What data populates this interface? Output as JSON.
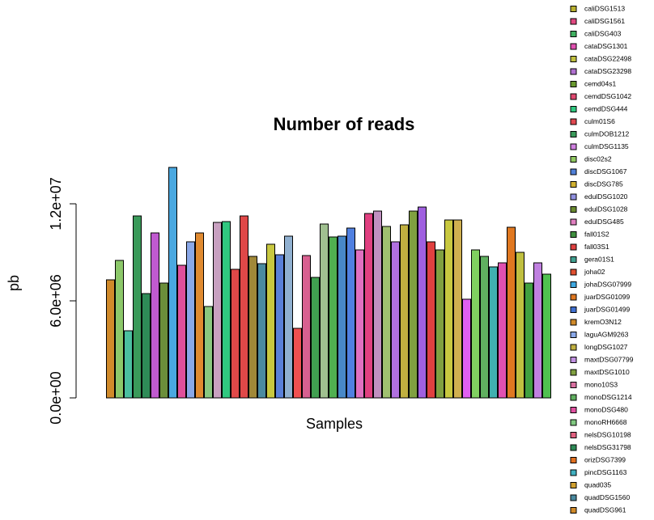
{
  "chart_data": {
    "type": "bar",
    "title": "Number of reads",
    "x_label": "Samples",
    "y_label": "pb",
    "values": [
      7300000,
      8500000,
      4150000,
      11250000,
      6450000,
      10200000,
      7100000,
      14250000,
      8200000,
      9650000,
      10200000,
      5650000,
      10850000,
      10900000,
      7950000,
      11250000,
      8750000,
      8300000,
      9500000,
      8850000,
      10000000,
      4300000,
      8800000,
      7450000,
      10750000,
      9950000,
      10000000,
      10500000,
      9150000,
      11400000,
      11550000,
      10600000,
      9650000,
      10700000,
      11550000,
      11800000,
      9650000,
      9150000,
      11000000,
      11000000,
      6100000,
      9150000,
      8750000,
      8100000,
      8350000,
      10550000,
      9000000,
      7100000,
      8350000,
      7650000
    ],
    "colors": [
      "#d08a2a",
      "#8cc86a",
      "#4bbfa0",
      "#3a9a5a",
      "#2e8b57",
      "#c05ad0",
      "#6b8e3a",
      "#4aa8e0",
      "#e0509a",
      "#8aa8e8",
      "#e08a30",
      "#8ac880",
      "#c8a0c0",
      "#30c880",
      "#e04848",
      "#e04848",
      "#a08838",
      "#4a8aa0",
      "#c8c840",
      "#5a80d8",
      "#90b0d0",
      "#f05050",
      "#d86090",
      "#40a050",
      "#a0c090",
      "#50b050",
      "#4888c8",
      "#5080e0",
      "#e070c0",
      "#e04080",
      "#c090c0",
      "#a0c070",
      "#b070e0",
      "#c0b040",
      "#80a040",
      "#a060e0",
      "#e04040",
      "#80a040",
      "#c8c840",
      "#d0b050",
      "#e060f0",
      "#80d060",
      "#60b060",
      "#40b0b0",
      "#e050b0",
      "#e07820",
      "#c0c040",
      "#40a040",
      "#c080e0",
      "#50c050"
    ],
    "ylim": [
      0,
      15000000
    ],
    "yticks": [
      {
        "value": 0,
        "label": "0.0e+00"
      },
      {
        "value": 6000000,
        "label": "6.0e+06"
      },
      {
        "value": 12000000,
        "label": "1.2e+07"
      }
    ],
    "legend": [
      {
        "label": "caliDSG1513",
        "color": "#b8b030"
      },
      {
        "label": "caliDSG1561",
        "color": "#e04880"
      },
      {
        "label": "caliDSG403",
        "color": "#40b060"
      },
      {
        "label": "cataDSG1301",
        "color": "#e050b0"
      },
      {
        "label": "cataDSG22498",
        "color": "#c0c040"
      },
      {
        "label": "cataDSG23298",
        "color": "#b070d0"
      },
      {
        "label": "cemd04s1",
        "color": "#6a9a30"
      },
      {
        "label": "cemdDSG1042",
        "color": "#e04870"
      },
      {
        "label": "cemdDSG444",
        "color": "#30c880"
      },
      {
        "label": "culm01S6",
        "color": "#e04850"
      },
      {
        "label": "culmDOB1212",
        "color": "#3a9a5a"
      },
      {
        "label": "culmDSG1135",
        "color": "#d080e0"
      },
      {
        "label": "disc02s2",
        "color": "#90c860"
      },
      {
        "label": "discDSG1067",
        "color": "#5080d8"
      },
      {
        "label": "discDSG785",
        "color": "#d0b030"
      },
      {
        "label": "edulDSG1020",
        "color": "#9090e0"
      },
      {
        "label": "edulDSG1028",
        "color": "#6a8a30"
      },
      {
        "label": "edulDSG485",
        "color": "#e080c0"
      },
      {
        "label": "fall01S2",
        "color": "#409040"
      },
      {
        "label": "fall03S1",
        "color": "#e04040"
      },
      {
        "label": "gera01S1",
        "color": "#40a090"
      },
      {
        "label": "joha02",
        "color": "#e05030"
      },
      {
        "label": "johaDSG07999",
        "color": "#40a8e0"
      },
      {
        "label": "juarDSG01099",
        "color": "#e07820"
      },
      {
        "label": "juarDSG01499",
        "color": "#4070d0"
      },
      {
        "label": "kremO3N12",
        "color": "#d08a2a"
      },
      {
        "label": "laguAGM9263",
        "color": "#8aa8e8"
      },
      {
        "label": "longDSG1027",
        "color": "#c0b040"
      },
      {
        "label": "maxtDSG07799",
        "color": "#c090e0"
      },
      {
        "label": "maxtDSG1010",
        "color": "#80a040"
      },
      {
        "label": "mono10S3",
        "color": "#d870a0"
      },
      {
        "label": "monoDSG1214",
        "color": "#60b060"
      },
      {
        "label": "monoDSG480",
        "color": "#e050a0"
      },
      {
        "label": "monoRH6668",
        "color": "#80c880"
      },
      {
        "label": "nelsDSG10198",
        "color": "#e06080"
      },
      {
        "label": "nelsDSG31798",
        "color": "#2e8b57"
      },
      {
        "label": "orizDSG7399",
        "color": "#e07020"
      },
      {
        "label": "pincDSG1163",
        "color": "#40b0c0"
      },
      {
        "label": "quad035",
        "color": "#d0a030"
      },
      {
        "label": "quadDSG1560",
        "color": "#4a8aa0"
      },
      {
        "label": "quadDSG961",
        "color": "#d08a2a"
      }
    ]
  }
}
